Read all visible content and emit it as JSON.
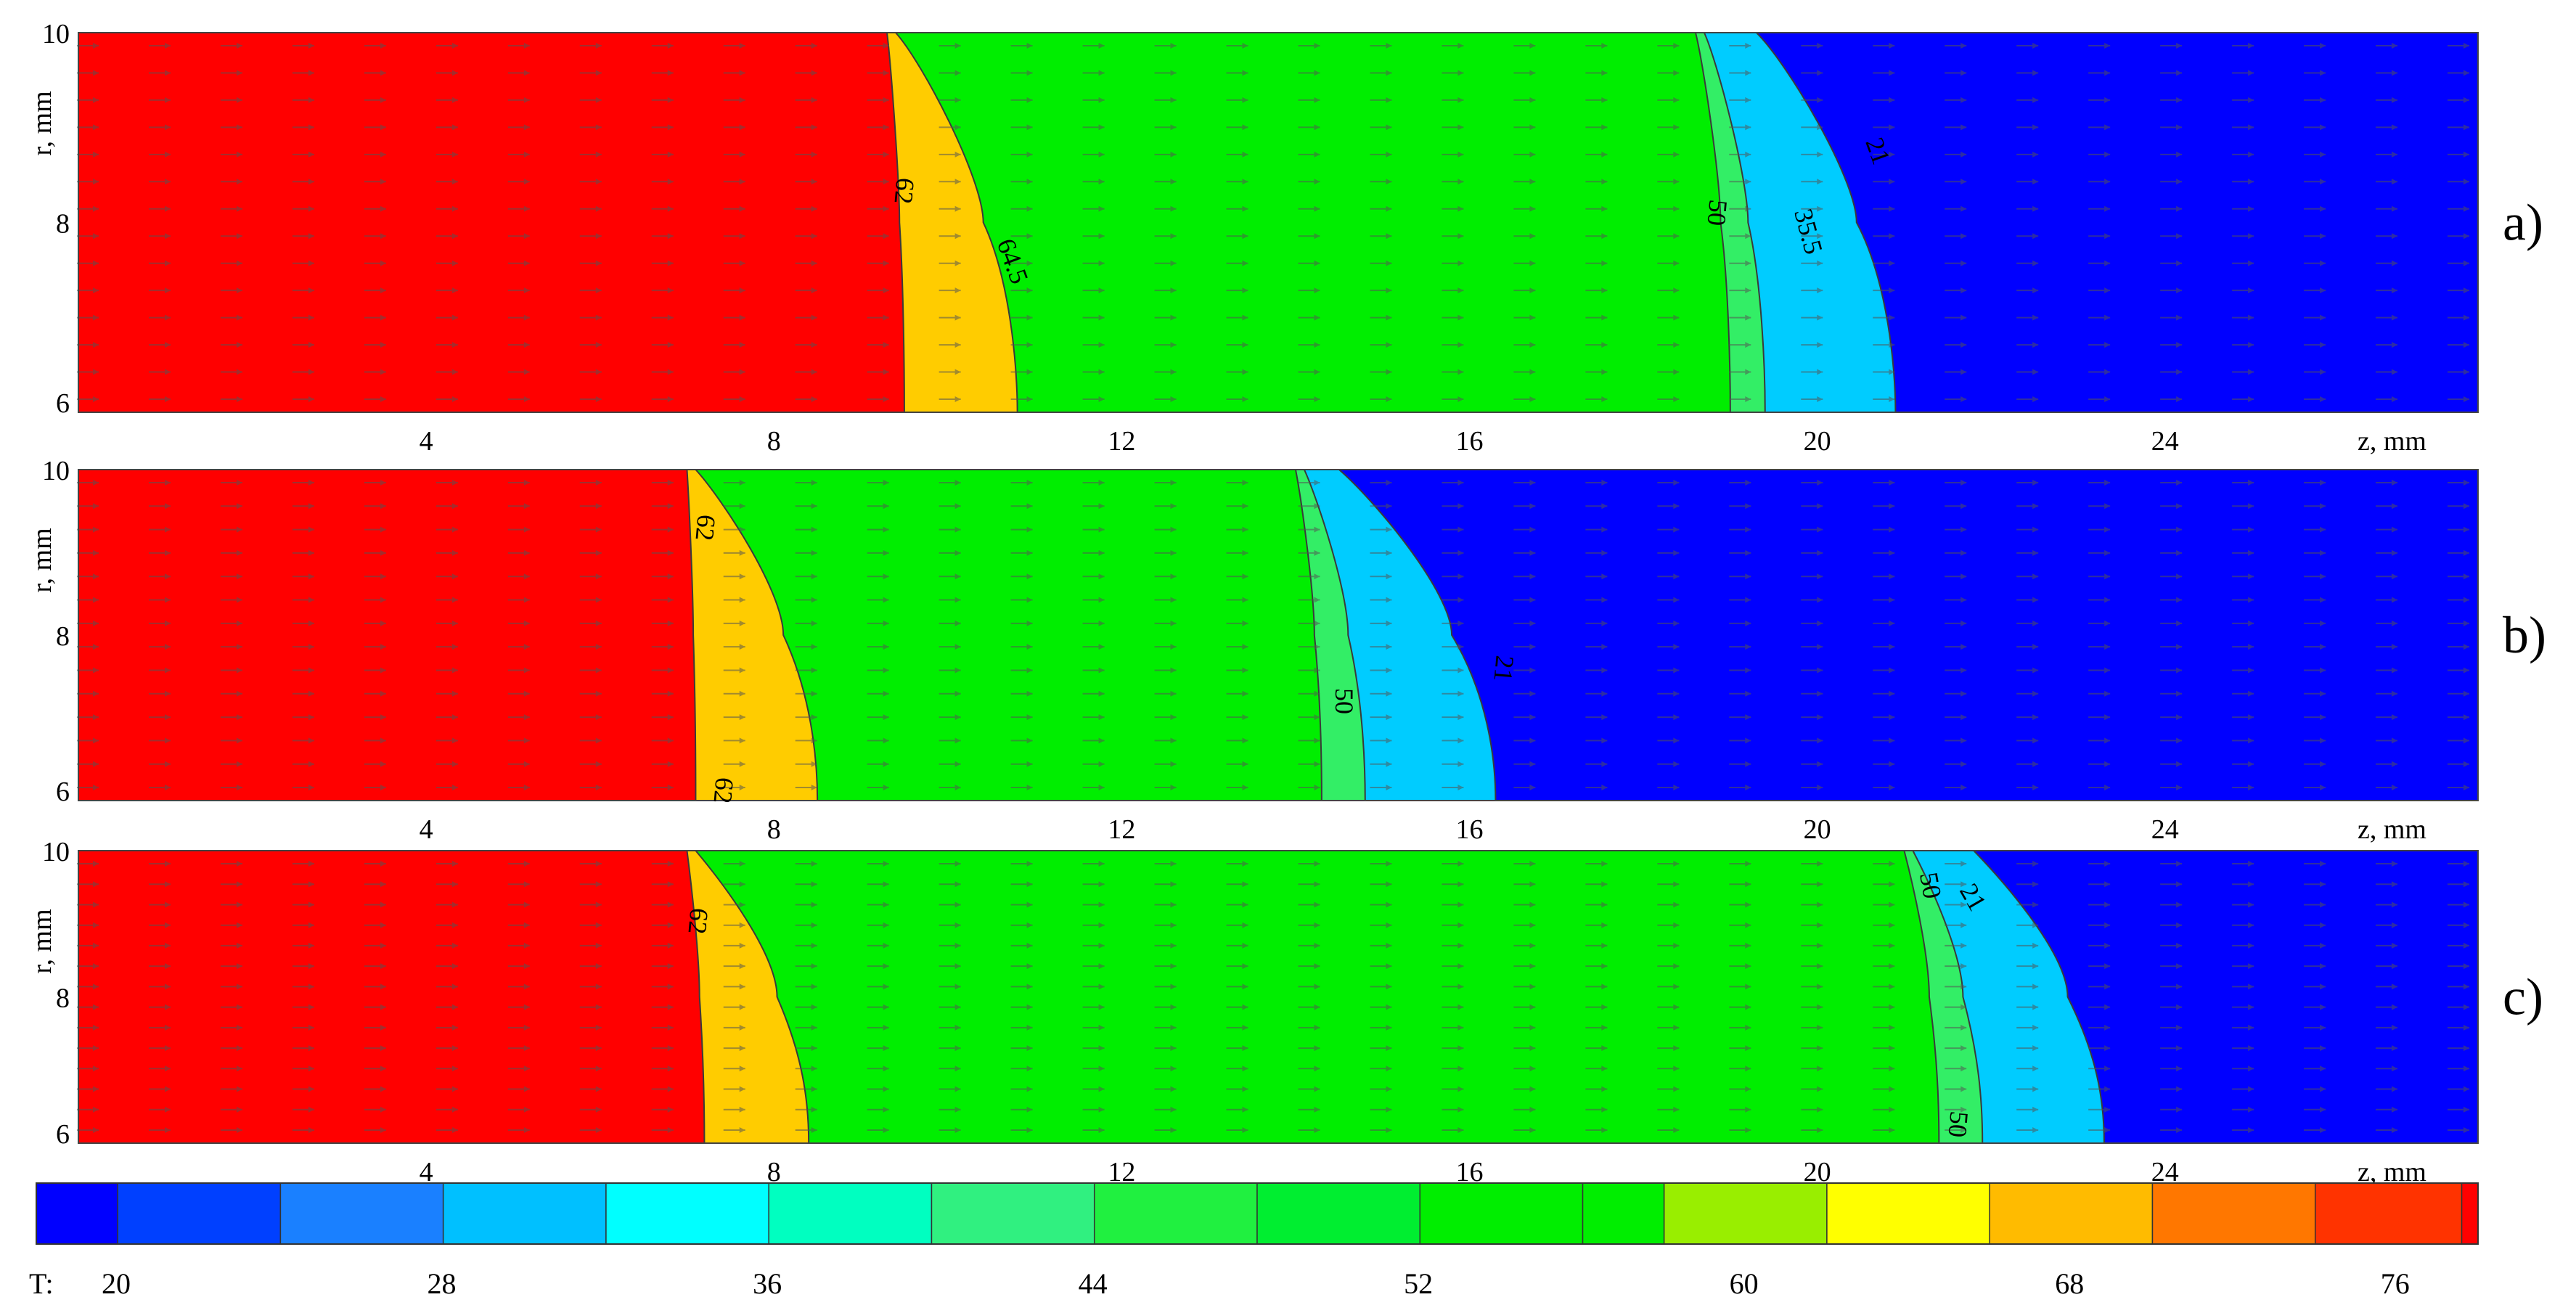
{
  "chart_data": [
    {
      "type": "heatmap",
      "panel_label": "a)",
      "xlabel": "z, mm",
      "ylabel": "r, mm",
      "xticks": [
        4,
        8,
        12,
        16,
        20,
        24
      ],
      "yticks": [
        6,
        8,
        10
      ],
      "xlim": [
        0,
        27.6
      ],
      "ylim": [
        6,
        10
      ],
      "regions": [
        {
          "value_range": [
            68,
            80
          ],
          "color": "#ff0000",
          "z_at_r10": 9.3,
          "z_at_r6": 9.5
        },
        {
          "value_range": [
            64,
            68
          ],
          "color": "#ffcc00",
          "z_at_r10": 9.4,
          "z_at_r6": 10.8
        },
        {
          "value_range": [
            44,
            64
          ],
          "color": "#00ee00",
          "z_at_r10": 18.6,
          "z_at_r6": 19.0
        },
        {
          "value_range": [
            40,
            44
          ],
          "color": "#33ee66",
          "z_at_r10": 18.7,
          "z_at_r6": 19.4
        },
        {
          "value_range": [
            28,
            40
          ],
          "color": "#00ccff",
          "z_at_r10": 19.3,
          "z_at_r6": 20.9
        },
        {
          "value_range": [
            20,
            28
          ],
          "color": "#0000ff",
          "z_at_r10": 27.6,
          "z_at_r6": 27.6
        }
      ],
      "contour_labels": [
        "62",
        "64.5",
        "50",
        "35.5",
        "21"
      ]
    },
    {
      "type": "heatmap",
      "panel_label": "b)",
      "xlabel": "z, mm",
      "ylabel": "r, mm",
      "xticks": [
        4,
        8,
        12,
        16,
        20,
        24
      ],
      "yticks": [
        6,
        8,
        10
      ],
      "xlim": [
        0,
        27.6
      ],
      "ylim": [
        6,
        10
      ],
      "regions": [
        {
          "value_range": [
            68,
            80
          ],
          "color": "#ff0000",
          "z_at_r10": 7.0,
          "z_at_r6": 7.1
        },
        {
          "value_range": [
            64,
            68
          ],
          "color": "#ffcc00",
          "z_at_r10": 7.1,
          "z_at_r6": 8.5
        },
        {
          "value_range": [
            44,
            64
          ],
          "color": "#00ee00",
          "z_at_r10": 14.0,
          "z_at_r6": 14.3
        },
        {
          "value_range": [
            40,
            44
          ],
          "color": "#33ee66",
          "z_at_r10": 14.1,
          "z_at_r6": 14.8
        },
        {
          "value_range": [
            28,
            40
          ],
          "color": "#00ccff",
          "z_at_r10": 14.5,
          "z_at_r6": 16.3
        },
        {
          "value_range": [
            20,
            28
          ],
          "color": "#0000ff",
          "z_at_r10": 27.6,
          "z_at_r6": 27.6
        }
      ],
      "contour_labels": [
        "62",
        "50",
        "21",
        "62"
      ]
    },
    {
      "type": "heatmap",
      "panel_label": "c)",
      "xlabel": "z, mm",
      "ylabel": "r, mm",
      "xticks": [
        4,
        8,
        12,
        16,
        20,
        24
      ],
      "yticks": [
        6,
        8,
        10
      ],
      "xlim": [
        0,
        27.6
      ],
      "ylim": [
        6,
        10
      ],
      "regions": [
        {
          "value_range": [
            68,
            80
          ],
          "color": "#ff0000",
          "z_at_r10": 7.0,
          "z_at_r6": 7.2
        },
        {
          "value_range": [
            64,
            68
          ],
          "color": "#ffcc00",
          "z_at_r10": 7.1,
          "z_at_r6": 8.4
        },
        {
          "value_range": [
            44,
            64
          ],
          "color": "#00ee00",
          "z_at_r10": 21.0,
          "z_at_r6": 21.4
        },
        {
          "value_range": [
            40,
            44
          ],
          "color": "#33ee66",
          "z_at_r10": 21.1,
          "z_at_r6": 21.9
        },
        {
          "value_range": [
            28,
            40
          ],
          "color": "#00ccff",
          "z_at_r10": 21.8,
          "z_at_r6": 23.3
        },
        {
          "value_range": [
            20,
            28
          ],
          "color": "#0000ff",
          "z_at_r10": 27.6,
          "z_at_r6": 27.6
        }
      ],
      "contour_labels": [
        "62",
        "50",
        "21",
        "50"
      ]
    }
  ],
  "colorbar": {
    "label": "T:",
    "ticks": [
      20,
      28,
      36,
      44,
      52,
      60,
      68,
      76
    ],
    "range": [
      20,
      80
    ],
    "segments": [
      {
        "from": 20,
        "to": 22,
        "color": "#0000ff"
      },
      {
        "from": 22,
        "to": 26,
        "color": "#0040ff"
      },
      {
        "from": 26,
        "to": 30,
        "color": "#1a80ff"
      },
      {
        "from": 30,
        "to": 34,
        "color": "#00c0ff"
      },
      {
        "from": 34,
        "to": 38,
        "color": "#00ffff"
      },
      {
        "from": 38,
        "to": 42,
        "color": "#00ffc0"
      },
      {
        "from": 42,
        "to": 46,
        "color": "#30f080"
      },
      {
        "from": 46,
        "to": 50,
        "color": "#20f040"
      },
      {
        "from": 50,
        "to": 54,
        "color": "#00ee30"
      },
      {
        "from": 54,
        "to": 58,
        "color": "#00ee00"
      },
      {
        "from": 58,
        "to": 60,
        "color": "#00ee00"
      },
      {
        "from": 60,
        "to": 64,
        "color": "#99ee00"
      },
      {
        "from": 64,
        "to": 68,
        "color": "#ffff00"
      },
      {
        "from": 68,
        "to": 72,
        "color": "#ffbb00"
      },
      {
        "from": 72,
        "to": 76,
        "color": "#ff7700"
      },
      {
        "from": 76,
        "to": 79.6,
        "color": "#ff3300"
      },
      {
        "from": 79.6,
        "to": 80,
        "color": "#ff0000"
      }
    ]
  }
}
